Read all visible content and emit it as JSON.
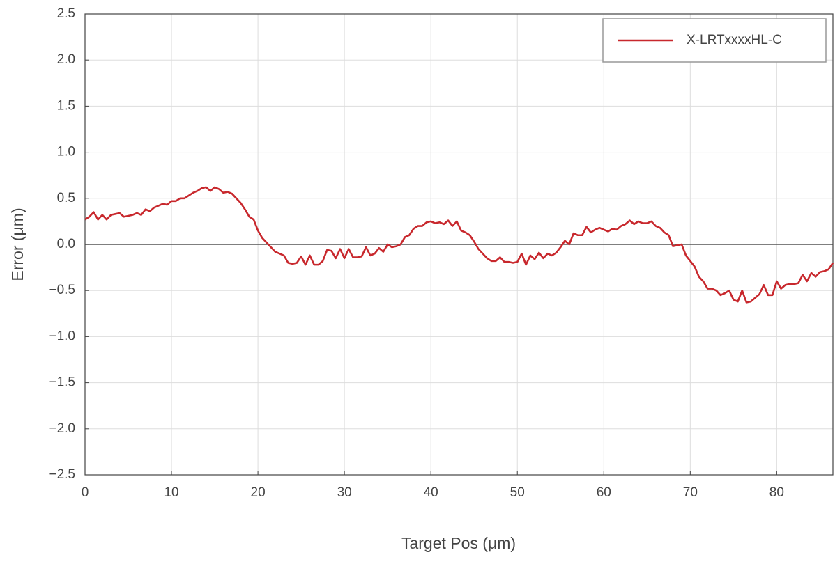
{
  "chart_data": {
    "type": "line",
    "xlabel": "Target Pos (μm)",
    "ylabel": "Error (μm)",
    "x": [
      0,
      0.5,
      1,
      1.5,
      2,
      2.5,
      3,
      3.5,
      4,
      4.5,
      5,
      5.5,
      6,
      6.5,
      7,
      7.5,
      8,
      8.5,
      9,
      9.5,
      10,
      10.5,
      11,
      11.5,
      12,
      12.5,
      13,
      13.5,
      14,
      14.5,
      15,
      15.5,
      16,
      16.5,
      17,
      17.5,
      18,
      18.5,
      19,
      19.5,
      20,
      20.5,
      21,
      21.5,
      22,
      22.5,
      23,
      23.5,
      24,
      24.5,
      25,
      25.5,
      26,
      26.5,
      27,
      27.5,
      28,
      28.5,
      29,
      29.5,
      30,
      30.5,
      31,
      31.5,
      32,
      32.5,
      33,
      33.5,
      34,
      34.5,
      35,
      35.5,
      36,
      36.5,
      37,
      37.5,
      38,
      38.5,
      39,
      39.5,
      40,
      40.5,
      41,
      41.5,
      42,
      42.5,
      43,
      43.5,
      44,
      44.5,
      45,
      45.5,
      46,
      46.5,
      47,
      47.5,
      48,
      48.5,
      49,
      49.5,
      50,
      50.5,
      51,
      51.5,
      52,
      52.5,
      53,
      53.5,
      54,
      54.5,
      55,
      55.5,
      56,
      56.5,
      57,
      57.5,
      58,
      58.5,
      59,
      59.5,
      60,
      60.5,
      61,
      61.5,
      62,
      62.5,
      63,
      63.5,
      64,
      64.5,
      65,
      65.5,
      66,
      66.5,
      67,
      67.5,
      68,
      68.5,
      69,
      69.5,
      70,
      70.5,
      71,
      71.5,
      72,
      72.5,
      73,
      73.5,
      74,
      74.5,
      75,
      75.5,
      76,
      76.5,
      77,
      77.5,
      78,
      78.5,
      79,
      79.5,
      80,
      80.5,
      81,
      81.5,
      82,
      82.5,
      83,
      83.5,
      84,
      84.5,
      85,
      85.5,
      86,
      86.5
    ],
    "series": [
      {
        "name": "X-LRTxxxxHL-C",
        "color": "#c8282d",
        "values": [
          0.27,
          0.3,
          0.35,
          0.27,
          0.32,
          0.27,
          0.32,
          0.33,
          0.34,
          0.3,
          0.31,
          0.32,
          0.34,
          0.32,
          0.38,
          0.36,
          0.4,
          0.42,
          0.44,
          0.43,
          0.47,
          0.47,
          0.5,
          0.5,
          0.53,
          0.56,
          0.58,
          0.61,
          0.62,
          0.58,
          0.62,
          0.6,
          0.56,
          0.57,
          0.55,
          0.5,
          0.45,
          0.38,
          0.3,
          0.27,
          0.15,
          0.07,
          0.02,
          -0.03,
          -0.08,
          -0.1,
          -0.12,
          -0.2,
          -0.21,
          -0.2,
          -0.13,
          -0.22,
          -0.12,
          -0.22,
          -0.22,
          -0.18,
          -0.06,
          -0.07,
          -0.15,
          -0.05,
          -0.15,
          -0.05,
          -0.14,
          -0.14,
          -0.13,
          -0.03,
          -0.12,
          -0.1,
          -0.04,
          -0.08,
          0.0,
          -0.03,
          -0.02,
          0.0,
          0.08,
          0.1,
          0.17,
          0.2,
          0.2,
          0.24,
          0.25,
          0.23,
          0.24,
          0.22,
          0.26,
          0.2,
          0.25,
          0.15,
          0.13,
          0.1,
          0.03,
          -0.05,
          -0.1,
          -0.15,
          -0.18,
          -0.18,
          -0.14,
          -0.19,
          -0.19,
          -0.2,
          -0.19,
          -0.1,
          -0.22,
          -0.12,
          -0.16,
          -0.09,
          -0.15,
          -0.1,
          -0.12,
          -0.09,
          -0.03,
          0.04,
          0.0,
          0.12,
          0.1,
          0.1,
          0.19,
          0.13,
          0.16,
          0.18,
          0.16,
          0.14,
          0.17,
          0.16,
          0.2,
          0.22,
          0.26,
          0.22,
          0.25,
          0.23,
          0.23,
          0.25,
          0.2,
          0.18,
          0.13,
          0.1,
          -0.02,
          -0.01,
          0.0,
          -0.12,
          -0.18,
          -0.24,
          -0.35,
          -0.4,
          -0.48,
          -0.48,
          -0.5,
          -0.55,
          -0.53,
          -0.5,
          -0.6,
          -0.62,
          -0.5,
          -0.63,
          -0.62,
          -0.58,
          -0.54,
          -0.44,
          -0.55,
          -0.55,
          -0.4,
          -0.48,
          -0.44,
          -0.43,
          -0.43,
          -0.42,
          -0.33,
          -0.4,
          -0.31,
          -0.35,
          -0.3,
          -0.29,
          -0.27,
          -0.2
        ]
      }
    ],
    "xlim": [
      0,
      86.5
    ],
    "xticks": [
      0,
      10,
      20,
      30,
      40,
      50,
      60,
      70,
      80
    ],
    "ylim": [
      -2.5,
      2.5
    ],
    "yticks": [
      {
        "value": -2.5,
        "label": "−2.5"
      },
      {
        "value": -2,
        "label": "−2.0"
      },
      {
        "value": -1.5,
        "label": "−1.5"
      },
      {
        "value": -1,
        "label": "−1.0"
      },
      {
        "value": -0.5,
        "label": "−0.5"
      },
      {
        "value": 0,
        "label": "0.0"
      },
      0.5,
      {
        "value": 1,
        "label": "1.0"
      },
      1.5,
      {
        "value": 2,
        "label": "2.0"
      },
      2.5
    ],
    "grid": true,
    "legend": "upper right"
  }
}
